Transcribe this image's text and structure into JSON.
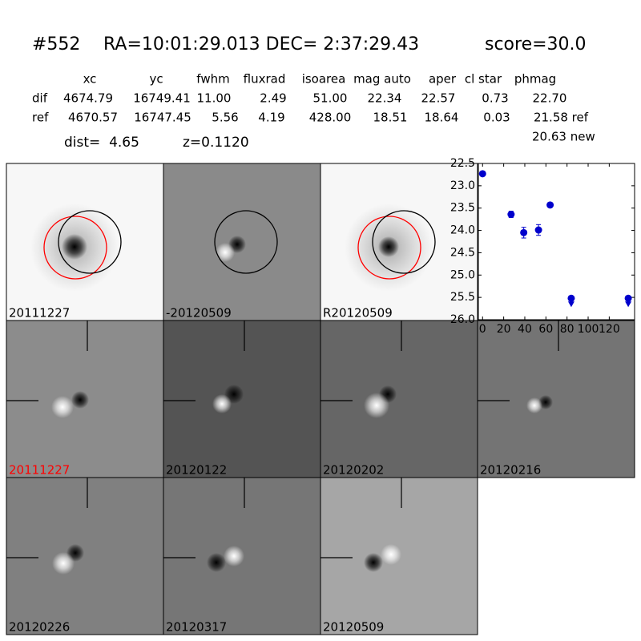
{
  "header": {
    "id": "#552",
    "coords": "RA=10:01:29.013 DEC= 2:37:29.43",
    "score": "score=30.0"
  },
  "table": {
    "columns": [
      "xc",
      "yc",
      "fwhm",
      "fluxrad",
      "isoarea",
      "mag auto",
      "aper",
      "cl star",
      "phmag"
    ],
    "rows": [
      [
        "dif",
        "4674.79",
        "16749.41",
        "11.00",
        "2.49",
        "51.00",
        "22.34",
        "22.57",
        "0.73",
        "22.70"
      ],
      [
        "ref",
        "4670.57",
        "16747.45",
        "5.56",
        "4.19",
        "428.00",
        "18.51",
        "18.64",
        "0.03",
        "21.58 ref"
      ]
    ],
    "extra": "20.63 new"
  },
  "info": {
    "dist": "dist=  4.65",
    "z": "z=0.1120"
  },
  "stamps": [
    {
      "label": "20111227"
    },
    {
      "label": "-20120509"
    },
    {
      "label": "R20120509"
    },
    {
      "label": "20111227",
      "label_color": "#ff0000"
    },
    {
      "label": "20120122"
    },
    {
      "label": "20120202"
    },
    {
      "label": "20120216"
    },
    {
      "label": "20120226"
    },
    {
      "label": "20120317"
    },
    {
      "label": "20120509"
    }
  ],
  "chart_data": {
    "type": "scatter",
    "color": "#0000cc",
    "x": [
      0,
      27,
      39,
      53,
      64,
      84,
      138
    ],
    "values": [
      22.73,
      23.64,
      24.05,
      23.99,
      23.43,
      25.52,
      25.52
    ],
    "errors": [
      0.03,
      0.07,
      0.12,
      0.12,
      0.05,
      null,
      null
    ],
    "upper_limit": [
      false,
      false,
      false,
      false,
      false,
      true,
      true
    ],
    "xlim": [
      -4,
      144
    ],
    "ylim": [
      26.0,
      22.5
    ],
    "xticks": [
      0,
      20,
      40,
      60,
      80,
      100,
      120
    ],
    "yticks": [
      22.5,
      {
        "value": 23,
        "label": "23.0"
      },
      23.5,
      {
        "value": 24,
        "label": "24.0"
      },
      24.5,
      {
        "value": 25,
        "label": "25.0"
      },
      25.5,
      {
        "value": 26,
        "label": "26.0"
      }
    ]
  }
}
